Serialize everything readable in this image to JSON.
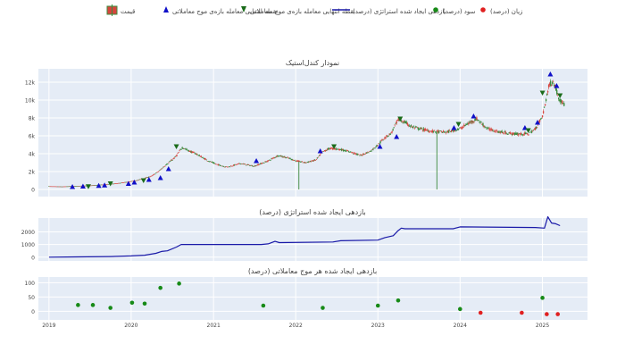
{
  "legend": {
    "placement": "top",
    "items": [
      {
        "name": "قیمت",
        "icon": "candlestick-icon"
      },
      {
        "name": "نقطه ابتدایی معامله بازه‌ی موج معاملاتی",
        "icon": "triangle-up-icon",
        "color": "#1010c8"
      },
      {
        "name": "نقطه انتهایی معامله بازه‌ی موج معاملاتی",
        "icon": "triangle-down-icon",
        "color": "#1a6b1a"
      },
      {
        "name": "بازدهی ایجاد شده استراتژی (درصد)",
        "icon": "line-icon",
        "color": "#1a1aa8"
      },
      {
        "name": "سود (درصد)",
        "icon": "dot-icon",
        "color": "#178a17"
      },
      {
        "name": "زیان (درصد)",
        "icon": "dot-icon",
        "color": "#e02020"
      }
    ]
  },
  "colors": {
    "plot_bg": "#e5ecf6",
    "grid": "#ffffff",
    "candle_up": "#3d8a3d",
    "candle_down": "#d6453d",
    "buy_marker": "#1010c8",
    "sell_marker": "#1a6b1a",
    "strategy_line": "#1a1aa8",
    "profit": "#178a17",
    "loss": "#e02020"
  },
  "x_axis": {
    "ticks": [
      "2019",
      "2020",
      "2021",
      "2022",
      "2023",
      "2024",
      "2025"
    ],
    "range": [
      "2018-11-15",
      "2025-07-20"
    ]
  },
  "chart_data": [
    {
      "type": "candlestick",
      "title": "نمودار کندل‌استیک",
      "ylim": [
        -800,
        13500
      ],
      "yticks": [
        "0",
        "2k",
        "4k",
        "6k",
        "8k",
        "10k",
        "12k"
      ],
      "y_tick_values": [
        0,
        2000,
        4000,
        6000,
        8000,
        10000,
        12000
      ],
      "grid": true,
      "price_path": [
        [
          "2019-01-01",
          350
        ],
        [
          "2019-03-01",
          320
        ],
        [
          "2019-05-01",
          380
        ],
        [
          "2019-07-01",
          430
        ],
        [
          "2019-09-01",
          550
        ],
        [
          "2019-11-01",
          680
        ],
        [
          "2020-01-01",
          900
        ],
        [
          "2020-02-15",
          1150
        ],
        [
          "2020-04-01",
          1500
        ],
        [
          "2020-05-01",
          2000
        ],
        [
          "2020-06-01",
          2700
        ],
        [
          "2020-07-15",
          3600
        ],
        [
          "2020-08-15",
          4700
        ],
        [
          "2020-09-15",
          4300
        ],
        [
          "2020-10-15",
          4000
        ],
        [
          "2020-12-01",
          3300
        ],
        [
          "2021-01-15",
          2800
        ],
        [
          "2021-03-01",
          2500
        ],
        [
          "2021-05-01",
          2900
        ],
        [
          "2021-07-01",
          2600
        ],
        [
          "2021-09-01",
          3200
        ],
        [
          "2021-10-15",
          3800
        ],
        [
          "2021-12-01",
          3500
        ],
        [
          "2022-01-01",
          3200
        ],
        [
          "2022-02-15",
          3000
        ],
        [
          "2022-04-01",
          3300
        ],
        [
          "2022-05-01",
          4200
        ],
        [
          "2022-06-01",
          4600
        ],
        [
          "2022-07-15",
          4500
        ],
        [
          "2022-09-01",
          4200
        ],
        [
          "2022-10-15",
          3800
        ],
        [
          "2022-12-01",
          4300
        ],
        [
          "2023-01-01",
          5000
        ],
        [
          "2023-02-01",
          5800
        ],
        [
          "2023-03-01",
          6300
        ],
        [
          "2023-04-01",
          7800
        ],
        [
          "2023-05-01",
          7500
        ],
        [
          "2023-06-01",
          7000
        ],
        [
          "2023-07-01",
          6800
        ],
        [
          "2023-09-01",
          6500
        ],
        [
          "2023-11-01",
          6400
        ],
        [
          "2024-01-01",
          6800
        ],
        [
          "2024-02-01",
          7300
        ],
        [
          "2024-03-15",
          7900
        ],
        [
          "2024-05-01",
          6800
        ],
        [
          "2024-07-01",
          6400
        ],
        [
          "2024-09-01",
          6200
        ],
        [
          "2024-11-01",
          6200
        ],
        [
          "2024-12-01",
          6800
        ],
        [
          "2025-01-01",
          8200
        ],
        [
          "2025-02-01",
          11800
        ],
        [
          "2025-02-20",
          12000
        ],
        [
          "2025-03-15",
          10200
        ],
        [
          "2025-04-10",
          9400
        ]
      ],
      "spikes": [
        {
          "x": "2022-01-15",
          "low": 0
        },
        {
          "x": "2023-09-20",
          "low": 0
        }
      ],
      "buy_points": [
        [
          "2019-04-15",
          300
        ],
        [
          "2019-06-01",
          350
        ],
        [
          "2019-08-10",
          420
        ],
        [
          "2019-09-05",
          480
        ],
        [
          "2019-12-20",
          650
        ],
        [
          "2020-01-15",
          800
        ],
        [
          "2020-03-20",
          1100
        ],
        [
          "2020-05-10",
          1300
        ],
        [
          "2020-06-15",
          2300
        ],
        [
          "2021-07-10",
          3200
        ],
        [
          "2022-04-20",
          4300
        ],
        [
          "2023-01-10",
          4800
        ],
        [
          "2023-03-25",
          5900
        ],
        [
          "2023-12-05",
          6900
        ],
        [
          "2024-03-01",
          8200
        ],
        [
          "2024-10-15",
          6900
        ],
        [
          "2024-12-10",
          7500
        ],
        [
          "2025-02-05",
          12900
        ],
        [
          "2025-03-05",
          11600
        ]
      ],
      "sell_points": [
        [
          "2019-06-25",
          330
        ],
        [
          "2019-10-01",
          650
        ],
        [
          "2020-02-25",
          1000
        ],
        [
          "2020-07-20",
          4800
        ],
        [
          "2022-06-20",
          4800
        ],
        [
          "2023-04-10",
          7900
        ],
        [
          "2023-12-25",
          7300
        ],
        [
          "2024-10-30",
          6600
        ],
        [
          "2025-01-01",
          10800
        ],
        [
          "2025-03-20",
          10500
        ]
      ]
    },
    {
      "type": "line",
      "title": "بازدهی ایجاد شده استراتژی (درصد)",
      "ylim": [
        -300,
        3100
      ],
      "yticks": [
        "0",
        "1000",
        "2000"
      ],
      "y_tick_values": [
        0,
        1000,
        2000
      ],
      "grid": true,
      "series": [
        {
          "name": "بازدهی ایجاد شده استراتژی (درصد)",
          "points": [
            [
              "2019-01-01",
              0
            ],
            [
              "2019-05-01",
              20
            ],
            [
              "2019-10-01",
              50
            ],
            [
              "2020-01-01",
              100
            ],
            [
              "2020-03-01",
              150
            ],
            [
              "2020-04-20",
              300
            ],
            [
              "2020-05-15",
              450
            ],
            [
              "2020-06-10",
              500
            ],
            [
              "2020-07-20",
              800
            ],
            [
              "2020-08-10",
              1000
            ],
            [
              "2021-08-01",
              1000
            ],
            [
              "2021-09-01",
              1050
            ],
            [
              "2021-10-01",
              1250
            ],
            [
              "2021-10-20",
              1150
            ],
            [
              "2022-06-15",
              1200
            ],
            [
              "2022-07-20",
              1300
            ],
            [
              "2023-01-01",
              1350
            ],
            [
              "2023-02-01",
              1550
            ],
            [
              "2023-03-10",
              1700
            ],
            [
              "2023-04-01",
              2100
            ],
            [
              "2023-04-15",
              2300
            ],
            [
              "2023-05-01",
              2250
            ],
            [
              "2023-12-01",
              2250
            ],
            [
              "2024-01-01",
              2400
            ],
            [
              "2024-12-01",
              2350
            ],
            [
              "2025-01-10",
              2300
            ],
            [
              "2025-01-25",
              3200
            ],
            [
              "2025-02-10",
              2700
            ],
            [
              "2025-03-01",
              2650
            ],
            [
              "2025-03-20",
              2500
            ]
          ]
        }
      ]
    },
    {
      "type": "scatter",
      "title": "بازدهی ایجاد شده هر موج معاملاتی (درصد)",
      "ylim": [
        -30,
        120
      ],
      "yticks": [
        "0",
        "50",
        "100"
      ],
      "y_tick_values": [
        0,
        50,
        100
      ],
      "grid": true,
      "series": [
        {
          "name": "سود (درصد)",
          "points": [
            [
              "2019-05-10",
              22
            ],
            [
              "2019-07-15",
              22
            ],
            [
              "2019-10-01",
              12
            ],
            [
              "2020-01-05",
              30
            ],
            [
              "2020-03-01",
              27
            ],
            [
              "2020-05-10",
              82
            ],
            [
              "2020-08-01",
              97
            ],
            [
              "2021-08-10",
              20
            ],
            [
              "2022-05-01",
              12
            ],
            [
              "2023-01-01",
              20
            ],
            [
              "2023-04-01",
              38
            ],
            [
              "2024-01-01",
              8
            ],
            [
              "2025-01-01",
              47
            ]
          ]
        },
        {
          "name": "زیان (درصد)",
          "points": [
            [
              "2024-04-01",
              -5
            ],
            [
              "2024-10-01",
              -5
            ],
            [
              "2025-01-20",
              -10
            ],
            [
              "2025-03-10",
              -10
            ]
          ]
        }
      ]
    }
  ]
}
